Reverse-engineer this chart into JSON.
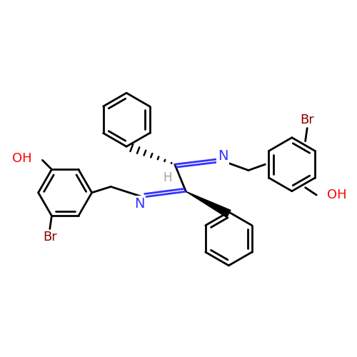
{
  "bg_color": "#ffffff",
  "bond_color": "#000000",
  "N_color": "#3333ff",
  "O_color": "#ff0000",
  "Br_color": "#8b0000",
  "H_color": "#a0a0a0",
  "lw": 2.0,
  "r_hex": 0.72,
  "xlim": [
    -4.8,
    4.8
  ],
  "ylim": [
    -4.8,
    4.8
  ]
}
